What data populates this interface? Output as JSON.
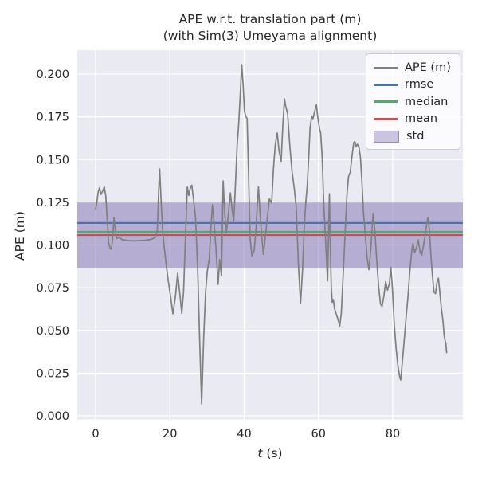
{
  "chart_data": {
    "type": "line",
    "title_line1": "APE w.r.t. translation part (m)",
    "title_line2": "(with Sim(3) Umeyama alignment)",
    "xlabel_parts": {
      "math": "t",
      "rest": " (s)"
    },
    "ylabel": "APE (m)",
    "xlim": [
      -4.93,
      98.88
    ],
    "ylim": [
      -0.0021,
      0.214
    ],
    "grid": true,
    "xticks": [
      0,
      20,
      40,
      60,
      80
    ],
    "xtick_labels": [
      "0",
      "20",
      "40",
      "60",
      "80"
    ],
    "yticks": [
      0.0,
      0.025,
      0.05,
      0.075,
      0.1,
      0.125,
      0.15,
      0.175,
      0.2
    ],
    "ytick_labels": [
      "0.000",
      "0.025",
      "0.050",
      "0.075",
      "0.100",
      "0.125",
      "0.150",
      "0.175",
      "0.200"
    ],
    "colors": {
      "axes_bg": "#eaeaf2",
      "grid": "#ffffff",
      "text": "#262626"
    },
    "stat_lines": [
      {
        "name": "rmse",
        "color": "#4c72b0",
        "value": 0.1129
      },
      {
        "name": "median",
        "color": "#55a868",
        "value": 0.1077
      },
      {
        "name": "mean",
        "color": "#c44e52",
        "value": 0.1058
      }
    ],
    "band": {
      "name": "std",
      "color": "#8172b2",
      "opacity": 0.5,
      "from": 0.0867,
      "to": 0.1249,
      "std": 0.0191
    },
    "legend": {
      "position": "upper right",
      "entries": [
        {
          "name": "APE",
          "label": "APE (m)",
          "swatch": "line",
          "color": "#7f7f7f"
        },
        {
          "name": "rmse",
          "label": "rmse",
          "swatch": "line",
          "color": "#4c72b0"
        },
        {
          "name": "median",
          "label": "median",
          "swatch": "line",
          "color": "#55a868"
        },
        {
          "name": "mean",
          "label": "mean",
          "swatch": "line",
          "color": "#c44e52"
        },
        {
          "name": "std",
          "label": "std",
          "swatch": "patch",
          "color": "#8172b2"
        }
      ]
    },
    "series": [
      {
        "name": "APE (m)",
        "color": "#7f7f7f",
        "points": [
          [
            0,
            0.121
          ],
          [
            0.3,
            0.1245
          ],
          [
            0.7,
            0.131
          ],
          [
            1.05,
            0.1335
          ],
          [
            1.45,
            0.1295
          ],
          [
            1.9,
            0.1315
          ],
          [
            2.35,
            0.134
          ],
          [
            2.75,
            0.1285
          ],
          [
            3.1,
            0.116
          ],
          [
            3.5,
            0.1015
          ],
          [
            3.9,
            0.098
          ],
          [
            4.25,
            0.0975
          ],
          [
            4.6,
            0.104
          ],
          [
            4.95,
            0.116
          ],
          [
            5.3,
            0.109
          ],
          [
            5.65,
            0.1038
          ],
          [
            6.2,
            0.1045
          ],
          [
            7.2,
            0.1031
          ],
          [
            8.4,
            0.1027
          ],
          [
            9.6,
            0.1024
          ],
          [
            10.8,
            0.1024
          ],
          [
            12,
            0.1026
          ],
          [
            13.2,
            0.1027
          ],
          [
            14.4,
            0.1031
          ],
          [
            15.3,
            0.1036
          ],
          [
            16.1,
            0.1046
          ],
          [
            16.6,
            0.108
          ],
          [
            17,
            0.132
          ],
          [
            17.25,
            0.1445
          ],
          [
            17.6,
            0.128
          ],
          [
            18,
            0.11
          ],
          [
            18.4,
            0.1
          ],
          [
            18.9,
            0.0905
          ],
          [
            19.5,
            0.08
          ],
          [
            20.15,
            0.0705
          ],
          [
            20.8,
            0.0597
          ],
          [
            21.5,
            0.07
          ],
          [
            22.1,
            0.0835
          ],
          [
            22.7,
            0.071
          ],
          [
            23.2,
            0.06
          ],
          [
            23.7,
            0.0735
          ],
          [
            24.2,
            0.105
          ],
          [
            24.7,
            0.134
          ],
          [
            25.1,
            0.129
          ],
          [
            25.5,
            0.1335
          ],
          [
            25.9,
            0.135
          ],
          [
            26.4,
            0.126
          ],
          [
            26.9,
            0.116
          ],
          [
            27.5,
            0.085
          ],
          [
            28,
            0.046
          ],
          [
            28.55,
            0.007
          ],
          [
            29.1,
            0.046
          ],
          [
            29.6,
            0.072
          ],
          [
            30.1,
            0.085
          ],
          [
            30.6,
            0.092
          ],
          [
            31,
            0.108
          ],
          [
            31.45,
            0.1235
          ],
          [
            31.9,
            0.113
          ],
          [
            32.4,
            0.0985
          ],
          [
            33,
            0.077
          ],
          [
            33.4,
            0.0915
          ],
          [
            33.9,
            0.082
          ],
          [
            34.35,
            0.1375
          ],
          [
            34.8,
            0.118
          ],
          [
            35.2,
            0.107
          ],
          [
            35.8,
            0.119
          ],
          [
            36.3,
            0.1305
          ],
          [
            36.8,
            0.1195
          ],
          [
            37.2,
            0.114
          ],
          [
            37.7,
            0.138
          ],
          [
            38.1,
            0.158
          ],
          [
            38.5,
            0.17
          ],
          [
            39,
            0.19
          ],
          [
            39.35,
            0.2055
          ],
          [
            39.75,
            0.193
          ],
          [
            40.1,
            0.178
          ],
          [
            40.5,
            0.175
          ],
          [
            40.8,
            0.174
          ],
          [
            41.2,
            0.14
          ],
          [
            41.6,
            0.104
          ],
          [
            42.1,
            0.0935
          ],
          [
            42.7,
            0.097
          ],
          [
            43.2,
            0.11
          ],
          [
            43.85,
            0.134
          ],
          [
            44.3,
            0.118
          ],
          [
            44.8,
            0.103
          ],
          [
            45.2,
            0.0945
          ],
          [
            45.7,
            0.105
          ],
          [
            46.2,
            0.115
          ],
          [
            46.8,
            0.127
          ],
          [
            47.4,
            0.1245
          ],
          [
            47.9,
            0.145
          ],
          [
            48.4,
            0.159
          ],
          [
            48.9,
            0.1655
          ],
          [
            49.4,
            0.155
          ],
          [
            49.95,
            0.149
          ],
          [
            50.4,
            0.17
          ],
          [
            50.85,
            0.1855
          ],
          [
            51.2,
            0.181
          ],
          [
            51.7,
            0.177
          ],
          [
            52.3,
            0.158
          ],
          [
            52.9,
            0.143
          ],
          [
            53.5,
            0.133
          ],
          [
            54,
            0.1225
          ],
          [
            54.6,
            0.088
          ],
          [
            55.2,
            0.066
          ],
          [
            55.7,
            0.085
          ],
          [
            56.2,
            0.111
          ],
          [
            56.6,
            0.1253
          ],
          [
            57,
            0.135
          ],
          [
            57.4,
            0.152
          ],
          [
            57.75,
            0.1685
          ],
          [
            58.2,
            0.1755
          ],
          [
            58.5,
            0.1735
          ],
          [
            58.9,
            0.1775
          ],
          [
            59.45,
            0.182
          ],
          [
            59.8,
            0.175
          ],
          [
            60.3,
            0.168
          ],
          [
            60.6,
            0.1655
          ],
          [
            61,
            0.1515
          ],
          [
            61.4,
            0.125
          ],
          [
            61.8,
            0.108
          ],
          [
            62.2,
            0.09
          ],
          [
            62.45,
            0.079
          ],
          [
            62.7,
            0.105
          ],
          [
            62.95,
            0.13
          ],
          [
            63.2,
            0.1
          ],
          [
            63.45,
            0.0755
          ],
          [
            63.7,
            0.0665
          ],
          [
            64,
            0.068
          ],
          [
            64.35,
            0.0625
          ],
          [
            64.8,
            0.0595
          ],
          [
            65.25,
            0.0565
          ],
          [
            65.75,
            0.0526
          ],
          [
            66.15,
            0.06
          ],
          [
            66.5,
            0.075
          ],
          [
            66.9,
            0.094
          ],
          [
            67.3,
            0.113
          ],
          [
            67.7,
            0.13
          ],
          [
            68.1,
            0.14
          ],
          [
            68.55,
            0.1425
          ],
          [
            69,
            0.1515
          ],
          [
            69.5,
            0.16
          ],
          [
            69.8,
            0.1605
          ],
          [
            70.15,
            0.1575
          ],
          [
            70.5,
            0.159
          ],
          [
            70.9,
            0.1575
          ],
          [
            71.3,
            0.1515
          ],
          [
            71.7,
            0.137
          ],
          [
            72.1,
            0.12
          ],
          [
            72.6,
            0.106
          ],
          [
            73.1,
            0.0925
          ],
          [
            73.6,
            0.0855
          ],
          [
            74.1,
            0.098
          ],
          [
            74.7,
            0.1185
          ],
          [
            75.2,
            0.108
          ],
          [
            75.7,
            0.091
          ],
          [
            76.2,
            0.0755
          ],
          [
            76.7,
            0.0655
          ],
          [
            77.1,
            0.064
          ],
          [
            77.6,
            0.07
          ],
          [
            78.1,
            0.0785
          ],
          [
            78.6,
            0.0735
          ],
          [
            79.1,
            0.0775
          ],
          [
            79.5,
            0.087
          ],
          [
            79.9,
            0.075
          ],
          [
            80.4,
            0.054
          ],
          [
            80.9,
            0.0395
          ],
          [
            81.4,
            0.029
          ],
          [
            81.9,
            0.0225
          ],
          [
            82.15,
            0.021
          ],
          [
            82.6,
            0.032
          ],
          [
            83.1,
            0.0445
          ],
          [
            83.6,
            0.058
          ],
          [
            84.1,
            0.07
          ],
          [
            84.6,
            0.0845
          ],
          [
            85.1,
            0.0965
          ],
          [
            85.45,
            0.101
          ],
          [
            85.9,
            0.0955
          ],
          [
            86.4,
            0.0985
          ],
          [
            86.85,
            0.103
          ],
          [
            87.4,
            0.0955
          ],
          [
            87.8,
            0.094
          ],
          [
            88.3,
            0.1
          ],
          [
            88.8,
            0.107
          ],
          [
            89.3,
            0.1145
          ],
          [
            89.5,
            0.116
          ],
          [
            89.9,
            0.108
          ],
          [
            90.3,
            0.093
          ],
          [
            90.7,
            0.0815
          ],
          [
            91.1,
            0.0725
          ],
          [
            91.5,
            0.0715
          ],
          [
            91.9,
            0.078
          ],
          [
            92.3,
            0.0805
          ],
          [
            92.7,
            0.0715
          ],
          [
            93.1,
            0.0625
          ],
          [
            93.5,
            0.056
          ],
          [
            93.85,
            0.047
          ],
          [
            94.15,
            0.0435
          ],
          [
            94.3,
            0.0425
          ],
          [
            94.5,
            0.037
          ]
        ]
      }
    ]
  }
}
